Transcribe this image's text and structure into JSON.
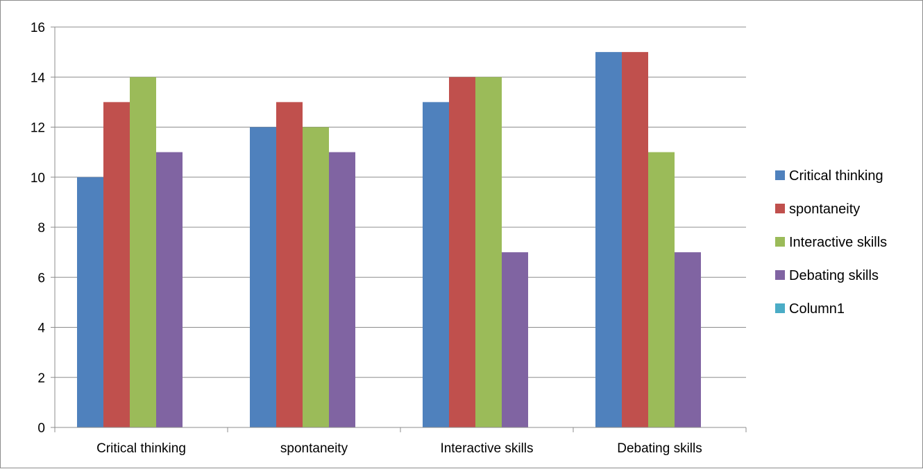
{
  "chart_data": {
    "type": "bar",
    "categories": [
      "Critical thinking",
      "spontaneity",
      "Interactive skills",
      "Debating skills"
    ],
    "series": [
      {
        "name": "Critical thinking",
        "color": "#4F81BD",
        "values": [
          10,
          12,
          13,
          15
        ]
      },
      {
        "name": "spontaneity",
        "color": "#C0504D",
        "values": [
          13,
          13,
          14,
          15
        ]
      },
      {
        "name": "Interactive skills",
        "color": "#9BBB59",
        "values": [
          14,
          12,
          14,
          11
        ]
      },
      {
        "name": "Debating skills",
        "color": "#8064A2",
        "values": [
          11,
          11,
          7,
          7
        ]
      },
      {
        "name": "Column1",
        "color": "#4BACC6",
        "values": [
          null,
          null,
          null,
          null
        ]
      }
    ],
    "ylim": [
      0,
      16
    ],
    "yticks": [
      0,
      2,
      4,
      6,
      8,
      10,
      12,
      14,
      16
    ],
    "grid": true,
    "legend": "right"
  }
}
